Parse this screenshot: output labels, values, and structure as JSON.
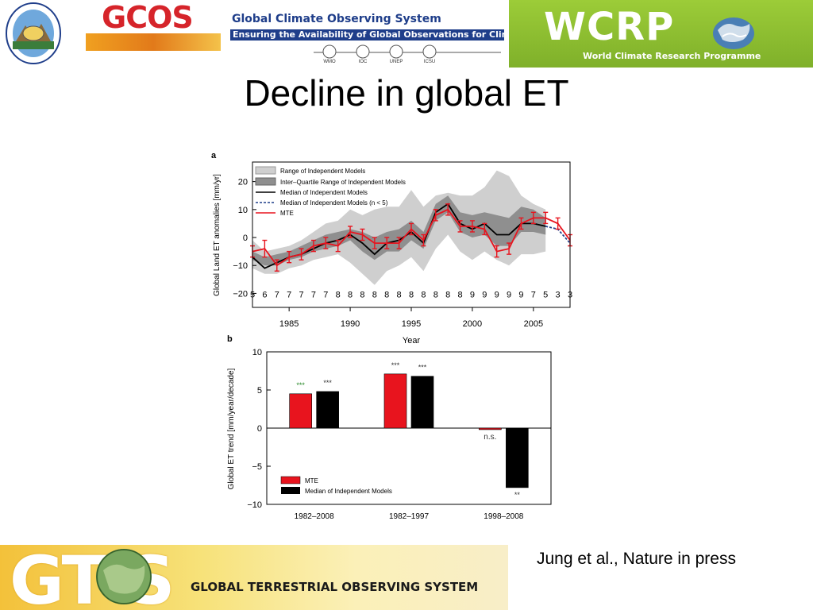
{
  "header": {
    "gcos_logo": "GCOS",
    "gcos_title": "Global Climate Observing System",
    "gcos_subtitle": "Ensuring the Availability of Global Observations for Climate",
    "gcos_partners": [
      "WMO",
      "IOC",
      "UNEP",
      "ICSU"
    ],
    "wcrp_logo": "WCRP",
    "wcrp_subtitle": "World Climate Research Programme"
  },
  "slide": {
    "title": "Decline in global ET",
    "citation": "Jung et al., Nature in press"
  },
  "footer": {
    "gtos_logo": "GT S",
    "gtos_subtitle": "GLOBAL TERRESTRIAL OBSERVING SYSTEM"
  },
  "colors": {
    "mte": "#e8141e",
    "models": "#000000",
    "range_fill": "#cfcfcf",
    "iqr_fill": "#8f8f8f",
    "gcos_red": "#d6242a",
    "gcos_blue": "#1f3e8a",
    "wcrp_green": "#8dbd30"
  },
  "chart_data": [
    {
      "type": "line",
      "panel_label": "a",
      "xlabel": "Year",
      "ylabel": "Global Land ET anomalies [mm/yr]",
      "xlim": [
        1982,
        2008
      ],
      "ylim": [
        -25,
        27
      ],
      "xticks": [
        1985,
        1990,
        1995,
        2000,
        2005
      ],
      "yticks": [
        20,
        10,
        0,
        -10,
        -20
      ],
      "x": [
        1982,
        1983,
        1984,
        1985,
        1986,
        1987,
        1988,
        1989,
        1990,
        1991,
        1992,
        1993,
        1994,
        1995,
        1996,
        1997,
        1998,
        1999,
        2000,
        2001,
        2002,
        2003,
        2004,
        2005,
        2006,
        2007,
        2008
      ],
      "model_counts": [
        "5",
        "6",
        "7",
        "7",
        "7",
        "7",
        "7",
        "8",
        "8",
        "8",
        "8",
        "8",
        "8",
        "8",
        "8",
        "8",
        "8",
        "8",
        "9",
        "9",
        "9",
        "9",
        "9",
        "7",
        "5",
        "3",
        "3"
      ],
      "legend": [
        "Range of Independent Models",
        "Inter–Quartile Range of Independent Models",
        "Median of Independent Models",
        "Median of Independent Models (n < 5)",
        "MTE"
      ],
      "series": [
        {
          "name": "MTE",
          "values": [
            -5,
            -4,
            -10,
            -7,
            -6,
            -3,
            -2,
            -3,
            2,
            1,
            -2,
            -2,
            -2,
            3,
            -1,
            8,
            10,
            4,
            4,
            3,
            -5,
            -4,
            5,
            7,
            7,
            5,
            -1
          ]
        },
        {
          "name": "Median of Independent Models",
          "values": [
            -7,
            -11,
            -9,
            -7,
            -6,
            -4,
            -2,
            -1,
            1,
            -2,
            -6,
            -2,
            -1,
            2,
            -2,
            9,
            12,
            5,
            3,
            5,
            1,
            1,
            5,
            5,
            4,
            null,
            null
          ]
        },
        {
          "name": "Median of Independent Models (n < 5)",
          "values": [
            null,
            null,
            null,
            null,
            null,
            null,
            null,
            null,
            null,
            null,
            null,
            null,
            null,
            null,
            null,
            null,
            null,
            null,
            null,
            null,
            null,
            null,
            null,
            null,
            4,
            3,
            -2
          ]
        },
        {
          "name": "Range of Independent Models",
          "lower": [
            -11,
            -13,
            -13,
            -11,
            -10,
            -8,
            -7,
            -6,
            -9,
            -13,
            -17,
            -12,
            -10,
            -7,
            -12,
            -4,
            1,
            -5,
            -8,
            -5,
            -8,
            -10,
            -6,
            -6,
            -5
          ],
          "upper": [
            -1,
            -5,
            -4,
            -3,
            -1,
            2,
            5,
            6,
            10,
            8,
            10,
            11,
            11,
            17,
            11,
            15,
            16,
            15,
            15,
            18,
            24,
            22,
            15,
            12,
            10
          ]
        },
        {
          "name": "Inter–Quartile Range of Independent Models",
          "lower": [
            -8,
            -10,
            -10,
            -8,
            -7,
            -5,
            -4,
            -3,
            -1,
            -5,
            -8,
            -5,
            -5,
            -1,
            -4,
            6,
            9,
            2,
            0,
            1,
            -3,
            -3,
            2,
            2,
            1
          ],
          "upper": [
            -5,
            -7,
            -6,
            -5,
            -3,
            -1,
            1,
            2,
            3,
            2,
            0,
            2,
            3,
            6,
            2,
            12,
            15,
            9,
            8,
            9,
            8,
            7,
            11,
            10,
            7
          ]
        }
      ],
      "mte_error": [
        2,
        3,
        2,
        2,
        2,
        2,
        2,
        2,
        2,
        2,
        2,
        2,
        2,
        2,
        2,
        2,
        2,
        2,
        2,
        2,
        2,
        2,
        2,
        2,
        2,
        2,
        2
      ]
    },
    {
      "type": "bar",
      "panel_label": "b",
      "ylabel": "Global ET trend [mm/year/decade]",
      "ylim": [
        -10,
        10
      ],
      "yticks": [
        10,
        5,
        0,
        -5,
        -10
      ],
      "categories": [
        "1982–2008",
        "1982–1997",
        "1998–2008"
      ],
      "series": [
        {
          "name": "MTE",
          "values": [
            4.5,
            7.1,
            -0.2
          ]
        },
        {
          "name": "Median of Independent Models",
          "values": [
            4.8,
            6.8,
            -7.8
          ]
        }
      ],
      "significance": [
        [
          "***",
          "***"
        ],
        [
          "***",
          "***"
        ],
        [
          "n.s.",
          "**"
        ]
      ],
      "legend": [
        "MTE",
        "Median of Independent Models"
      ]
    }
  ]
}
